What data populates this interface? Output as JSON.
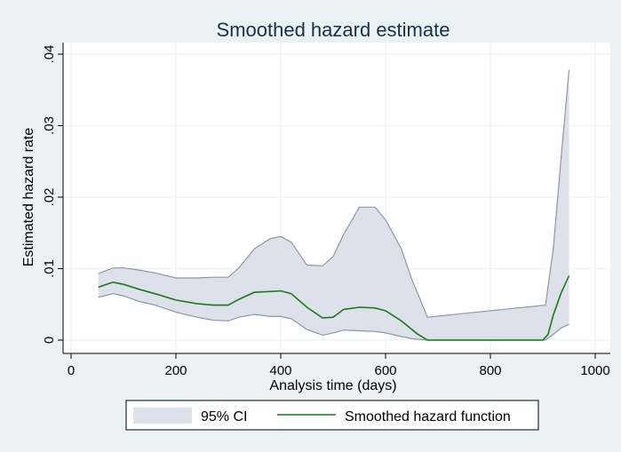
{
  "chart_data": {
    "type": "line",
    "title": "Smoothed hazard estimate",
    "xlabel": "Analysis time (days)",
    "ylabel": "Estimated hazard rate",
    "xlim": [
      0,
      1000
    ],
    "ylim": [
      0,
      0.04
    ],
    "xticks": [
      0,
      200,
      400,
      600,
      800,
      1000
    ],
    "xtick_labels": [
      "0",
      "200",
      "400",
      "600",
      "800",
      "1000"
    ],
    "yticks": [
      0,
      0.01,
      0.02,
      0.03,
      0.04
    ],
    "ytick_labels": [
      "0",
      ".01",
      ".02",
      ".03",
      ".04"
    ],
    "grid": true,
    "legend_position": "bottom",
    "series": [
      {
        "name": "Smoothed hazard function",
        "kind": "line",
        "color": "#1a7a1a",
        "x": [
          52,
          80,
          100,
          130,
          160,
          200,
          240,
          270,
          300,
          320,
          350,
          380,
          400,
          420,
          450,
          480,
          500,
          520,
          550,
          580,
          600,
          630,
          660,
          680,
          700,
          800,
          900,
          910,
          920,
          935,
          950
        ],
        "y": [
          0.0074,
          0.0081,
          0.0078,
          0.0071,
          0.0065,
          0.0056,
          0.0051,
          0.0049,
          0.0049,
          0.0057,
          0.0067,
          0.0068,
          0.0069,
          0.0065,
          0.0046,
          0.0031,
          0.0032,
          0.0043,
          0.0046,
          0.0045,
          0.0041,
          0.0027,
          0.0009,
          0.0,
          0.0,
          0.0,
          0.0,
          0.0008,
          0.0035,
          0.0066,
          0.009
        ]
      },
      {
        "name": "95% CI",
        "kind": "band",
        "color": "#dde1e9",
        "x": [
          52,
          80,
          100,
          130,
          160,
          200,
          240,
          270,
          300,
          320,
          350,
          380,
          400,
          420,
          450,
          480,
          500,
          520,
          550,
          580,
          600,
          630,
          650,
          680,
          905,
          920,
          935,
          950
        ],
        "upper": [
          0.0093,
          0.0101,
          0.0101,
          0.0098,
          0.0094,
          0.0087,
          0.0087,
          0.0088,
          0.0088,
          0.0101,
          0.0128,
          0.0142,
          0.0145,
          0.0137,
          0.0105,
          0.0104,
          0.0117,
          0.0148,
          0.0186,
          0.0186,
          0.0168,
          0.0128,
          0.0085,
          0.0032,
          0.0049,
          0.0128,
          0.0255,
          0.0378
        ],
        "lower": [
          0.006,
          0.0065,
          0.0062,
          0.0054,
          0.0049,
          0.0039,
          0.0032,
          0.0028,
          0.0027,
          0.0032,
          0.0036,
          0.0033,
          0.0033,
          0.003,
          0.0015,
          0.0007,
          0.001,
          0.0014,
          0.0013,
          0.0012,
          0.001,
          0.0005,
          0.0002,
          0.0,
          0.0,
          0.0008,
          0.0017,
          0.0022
        ]
      }
    ],
    "legend": [
      {
        "label": "95% CI",
        "type": "band",
        "color": "#dde1e9"
      },
      {
        "label": "Smoothed hazard function",
        "type": "line",
        "color": "#1a7a1a"
      }
    ]
  }
}
